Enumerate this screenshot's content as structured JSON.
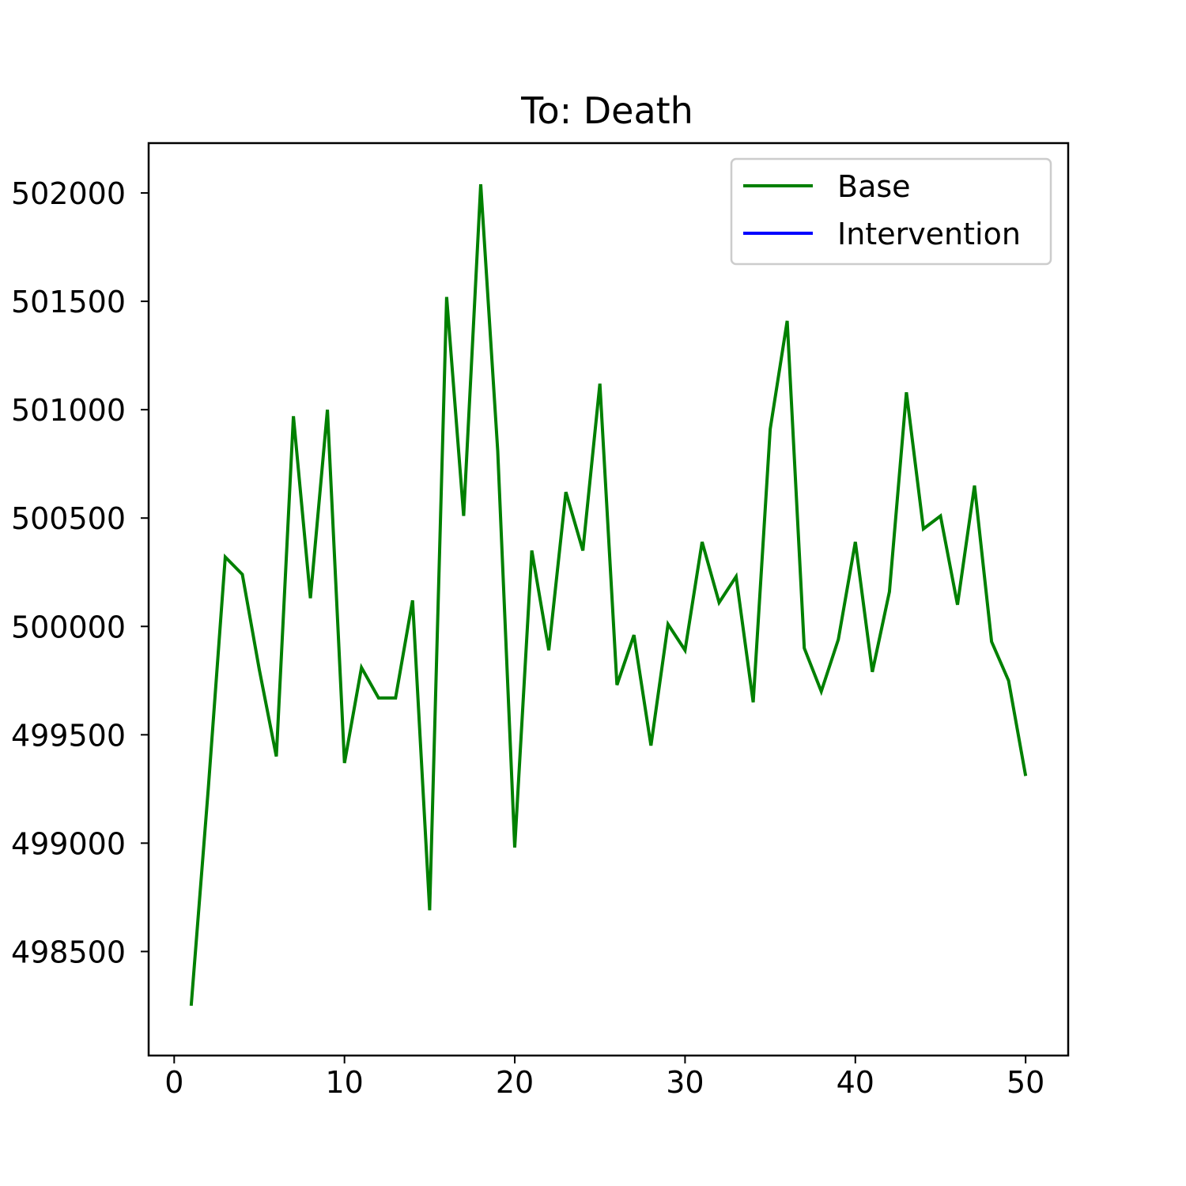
{
  "chart_data": {
    "type": "line",
    "title": "To: Death",
    "xlabel": "",
    "ylabel": "",
    "xlim": [
      -1.5,
      52.5
    ],
    "ylim": [
      498020,
      502230
    ],
    "xticks": [
      0,
      10,
      20,
      30,
      40,
      50
    ],
    "yticks": [
      498500,
      499000,
      499500,
      500000,
      500500,
      501000,
      501500,
      502000
    ],
    "grid": false,
    "legend_position": "top-right",
    "series": [
      {
        "name": "Base",
        "color": "#008000",
        "x": [
          1,
          2,
          3,
          4,
          5,
          6,
          7,
          8,
          9,
          10,
          11,
          12,
          13,
          14,
          15,
          16,
          17,
          18,
          19,
          20,
          21,
          22,
          23,
          24,
          25,
          26,
          27,
          28,
          29,
          30,
          31,
          32,
          33,
          34,
          35,
          36,
          37,
          38,
          39,
          40,
          41,
          42,
          43,
          44,
          45,
          46,
          47,
          48,
          49,
          50
        ],
        "y": [
          498250,
          499250,
          500320,
          500240,
          499800,
          499400,
          500970,
          500130,
          501000,
          499370,
          499810,
          499670,
          499670,
          500120,
          498690,
          501520,
          500510,
          502040,
          500810,
          498980,
          500350,
          499890,
          500620,
          500350,
          501120,
          499730,
          499960,
          499450,
          500010,
          499890,
          500390,
          500110,
          500230,
          499650,
          500910,
          501410,
          499900,
          499700,
          499940,
          500390,
          499790,
          500160,
          501080,
          500450,
          500510,
          500100,
          500650,
          499930,
          499750,
          499310
        ]
      },
      {
        "name": "Intervention",
        "color": "#0000ff",
        "x": [],
        "y": []
      }
    ]
  }
}
